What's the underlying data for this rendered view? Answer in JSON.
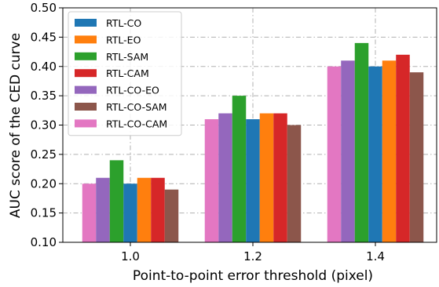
{
  "chart_data": {
    "type": "bar",
    "title": "",
    "xlabel": "Point-to-point error threshold (pixel)",
    "ylabel": "AUC score of the CED curve",
    "categories": [
      "1.0",
      "1.2",
      "1.4"
    ],
    "ylim": [
      0.1,
      0.5
    ],
    "yticks": [
      "0.10",
      "0.15",
      "0.20",
      "0.25",
      "0.30",
      "0.35",
      "0.40",
      "0.45",
      "0.50"
    ],
    "grid": true,
    "legend_position": "top-left",
    "bar_order": [
      "RTL-CO-CAM",
      "RTL-CO-EO",
      "RTL-SAM",
      "RTL-CO",
      "RTL-EO",
      "RTL-CAM",
      "RTL-CO-SAM"
    ],
    "series": [
      {
        "name": "RTL-CO",
        "color": "#1f77b4",
        "values": [
          0.2,
          0.31,
          0.4
        ]
      },
      {
        "name": "RTL-EO",
        "color": "#ff7f0e",
        "values": [
          0.21,
          0.32,
          0.41
        ]
      },
      {
        "name": "RTL-SAM",
        "color": "#2ca02c",
        "values": [
          0.24,
          0.35,
          0.44
        ]
      },
      {
        "name": "RTL-CAM",
        "color": "#d62728",
        "values": [
          0.21,
          0.32,
          0.42
        ]
      },
      {
        "name": "RTL-CO-EO",
        "color": "#9467bd",
        "values": [
          0.21,
          0.32,
          0.41
        ]
      },
      {
        "name": "RTL-CO-SAM",
        "color": "#8c564b",
        "values": [
          0.19,
          0.3,
          0.39
        ]
      },
      {
        "name": "RTL-CO-CAM",
        "color": "#e377c2",
        "values": [
          0.2,
          0.31,
          0.4
        ]
      }
    ]
  }
}
